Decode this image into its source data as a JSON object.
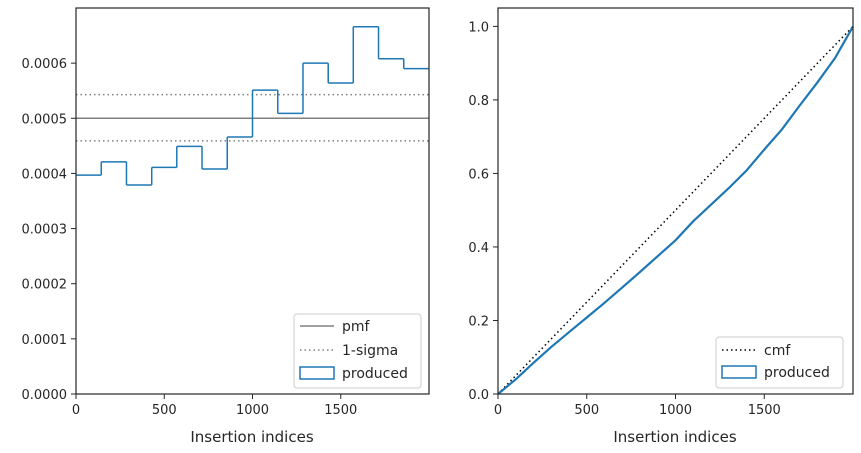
{
  "chart_data": [
    {
      "type": "step-histogram",
      "xlabel": "Insertion indices",
      "ylabel": "",
      "xlim": [
        0,
        2000
      ],
      "ylim": [
        0,
        0.0007
      ],
      "xticks": [
        0,
        500,
        1000,
        1500
      ],
      "xtick_labels": [
        "0",
        "500",
        "1000",
        "1500"
      ],
      "yticks": [
        0,
        0.0001,
        0.0002,
        0.0003,
        0.0004,
        0.0005,
        0.0006
      ],
      "ytick_labels": [
        "0.0000",
        "0.0001",
        "0.0002",
        "0.0003",
        "0.0004",
        "0.0005",
        "0.0006"
      ],
      "bin_edges": [
        0,
        143,
        286,
        429,
        571,
        714,
        857,
        1000,
        1143,
        1286,
        1429,
        1571,
        1714,
        1857,
        2000
      ],
      "values": [
        0.000397,
        0.000421,
        0.000379,
        0.000411,
        0.000449,
        0.000408,
        0.000466,
        0.000551,
        0.000509,
        0.0006,
        0.000564,
        0.000666,
        0.000608,
        0.00059
      ],
      "reference_lines": {
        "pmf": 0.0005,
        "sigma_upper": 0.000543,
        "sigma_lower": 0.000459
      },
      "legend": {
        "position": "lower right",
        "entries": [
          {
            "label": "pmf",
            "style": "solid",
            "color": "#808080"
          },
          {
            "label": "1-sigma",
            "style": "dotted",
            "color": "#808080"
          },
          {
            "label": "produced",
            "style": "patch",
            "color": "#1f77b4"
          }
        ]
      }
    },
    {
      "type": "line",
      "xlabel": "Insertion indices",
      "ylabel": "",
      "xlim": [
        0,
        2000
      ],
      "ylim": [
        0,
        1.05
      ],
      "xticks": [
        0,
        500,
        1000,
        1500
      ],
      "xtick_labels": [
        "0",
        "500",
        "1000",
        "1500"
      ],
      "yticks": [
        0,
        0.2,
        0.4,
        0.6,
        0.8,
        1.0
      ],
      "ytick_labels": [
        "0.0",
        "0.2",
        "0.4",
        "0.6",
        "0.8",
        "1.0"
      ],
      "series": [
        {
          "name": "cmf",
          "style": "dotted",
          "color": "#000000",
          "x": [
            0,
            2000
          ],
          "y": [
            0,
            1.0
          ]
        },
        {
          "name": "produced",
          "style": "solid",
          "color": "#1f77b4",
          "x": [
            0,
            100,
            200,
            300,
            400,
            500,
            600,
            700,
            800,
            900,
            1000,
            1100,
            1200,
            1300,
            1400,
            1500,
            1600,
            1700,
            1800,
            1900,
            2000
          ],
          "y": [
            0,
            0.04,
            0.085,
            0.128,
            0.168,
            0.208,
            0.248,
            0.29,
            0.332,
            0.375,
            0.418,
            0.47,
            0.515,
            0.56,
            0.608,
            0.665,
            0.72,
            0.785,
            0.848,
            0.915,
            1.0
          ]
        }
      ],
      "legend": {
        "position": "lower right",
        "entries": [
          {
            "label": "cmf",
            "style": "dotted",
            "color": "#000000"
          },
          {
            "label": "produced",
            "style": "patch",
            "color": "#1f77b4"
          }
        ]
      }
    }
  ]
}
